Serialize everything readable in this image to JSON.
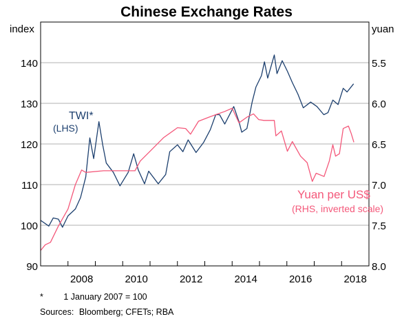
{
  "chart_data": {
    "type": "line",
    "title": "Chinese Exchange Rates",
    "ylabel_left": "index",
    "ylabel_right": "yuan",
    "xlim": [
      2007,
      2019
    ],
    "ylim_left": [
      90,
      150
    ],
    "ylim_right": [
      8.0,
      5.0
    ],
    "right_axis_inverted": true,
    "grid": true,
    "yticks_left": [
      90,
      100,
      110,
      120,
      130,
      140
    ],
    "yticks_right": [
      "8.0",
      "7.5",
      "7.0",
      "6.5",
      "6.0",
      "5.5"
    ],
    "yticks_right_values": [
      8.0,
      7.5,
      7.0,
      6.5,
      6.0,
      5.5
    ],
    "xticks": [
      "2008",
      "2010",
      "2012",
      "2014",
      "2016",
      "2018"
    ],
    "colors": {
      "twi": "#1c3f6e",
      "yuan": "#f4587a",
      "grid": "#b0b0b0"
    },
    "series": [
      {
        "name": "TWI*",
        "sublabel": "(LHS)",
        "axis": "left",
        "x": [
          2007.0,
          2007.3,
          2007.46,
          2007.65,
          2007.8,
          2008.0,
          2008.27,
          2008.46,
          2008.65,
          2008.8,
          2008.94,
          2009.13,
          2009.27,
          2009.4,
          2009.66,
          2009.9,
          2010.2,
          2010.4,
          2010.57,
          2010.8,
          2010.95,
          2011.3,
          2011.57,
          2011.72,
          2012.0,
          2012.2,
          2012.39,
          2012.68,
          2012.96,
          2013.2,
          2013.4,
          2013.54,
          2013.73,
          2014.06,
          2014.25,
          2014.35,
          2014.54,
          2014.73,
          2014.87,
          2015.07,
          2015.18,
          2015.3,
          2015.54,
          2015.64,
          2015.83,
          2016.02,
          2016.2,
          2016.4,
          2016.6,
          2016.87,
          2017.1,
          2017.35,
          2017.5,
          2017.68,
          2017.87,
          2018.06,
          2018.2,
          2018.44
        ],
        "values": [
          101.2,
          99.8,
          101.8,
          101.5,
          99.5,
          102.3,
          104,
          106.8,
          111.9,
          121.5,
          116.4,
          125.5,
          119.8,
          115.3,
          113,
          109.7,
          113,
          117.6,
          113.6,
          110.2,
          113.3,
          110.2,
          112.5,
          118.1,
          119.8,
          118.1,
          121,
          117.9,
          120.4,
          123.5,
          127.2,
          127.2,
          124.9,
          129.2,
          125.5,
          122.9,
          123.8,
          130.3,
          134,
          136.8,
          140.2,
          136.2,
          141.9,
          137.3,
          140.5,
          137.9,
          135.1,
          132.3,
          128.9,
          130.3,
          129.2,
          127.2,
          127.7,
          130.8,
          129.7,
          133.7,
          132.8,
          134.8
        ]
      },
      {
        "name": "Yuan per US$",
        "sublabel": "(RHS, inverted scale)",
        "axis": "right",
        "x": [
          2007.0,
          2007.17,
          2007.36,
          2007.65,
          2008.0,
          2008.27,
          2008.5,
          2008.65,
          2009.3,
          2010.45,
          2010.64,
          2011.0,
          2011.5,
          2012.0,
          2012.3,
          2012.48,
          2012.77,
          2013.15,
          2013.4,
          2013.73,
          2014.0,
          2014.25,
          2014.54,
          2014.78,
          2014.97,
          2015.16,
          2015.54,
          2015.6,
          2015.8,
          2016.02,
          2016.2,
          2016.5,
          2016.74,
          2016.93,
          2017.07,
          2017.36,
          2017.55,
          2017.68,
          2017.78,
          2017.92,
          2018.06,
          2018.25,
          2018.35,
          2018.45
        ],
        "values": [
          7.81,
          7.74,
          7.71,
          7.51,
          7.3,
          7.0,
          6.82,
          6.85,
          6.83,
          6.83,
          6.71,
          6.59,
          6.42,
          6.3,
          6.31,
          6.38,
          6.22,
          6.17,
          6.14,
          6.1,
          6.06,
          6.24,
          6.17,
          6.13,
          6.2,
          6.21,
          6.21,
          6.4,
          6.34,
          6.59,
          6.47,
          6.65,
          6.73,
          6.96,
          6.86,
          6.9,
          6.71,
          6.51,
          6.65,
          6.62,
          6.31,
          6.28,
          6.37,
          6.48
        ]
      }
    ]
  },
  "notes": {
    "footnote_marker": "*",
    "footnote_text": "1 January 2007 = 100",
    "sources_label": "Sources:",
    "sources_text": "Bloomberg; CFETs; RBA"
  }
}
